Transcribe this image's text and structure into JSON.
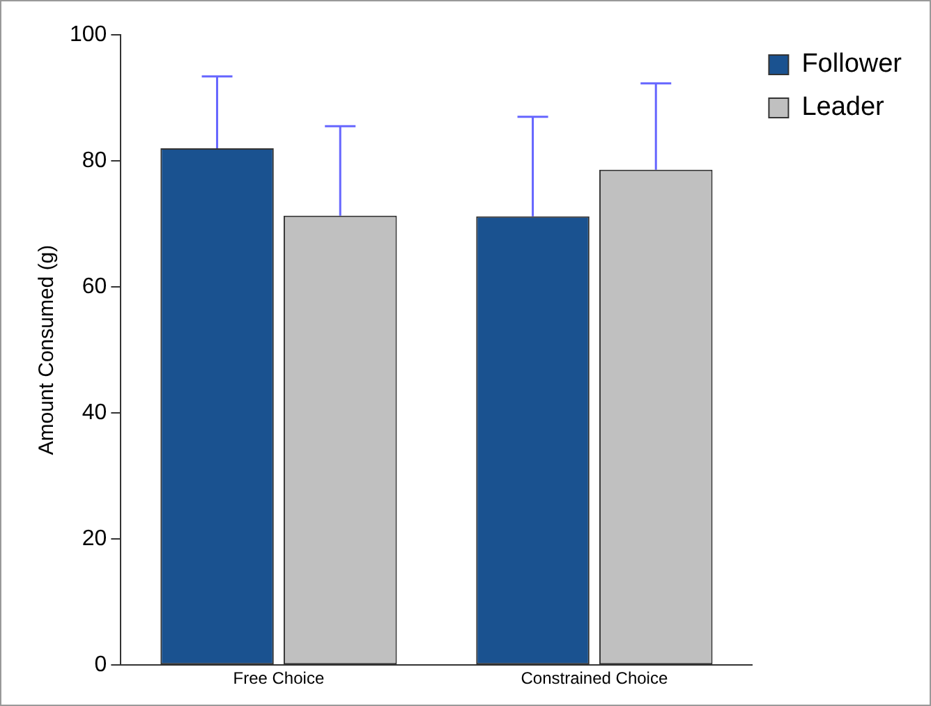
{
  "chart_data": {
    "type": "bar",
    "ylabel": "Amount Consumed (g)",
    "categories": [
      "Free Choice",
      "Constrained Choice"
    ],
    "series": [
      {
        "name": "Follower",
        "color": "#1a5290",
        "values": [
          82.0,
          71.2
        ],
        "errors": [
          [
            82.0,
            93.4
          ],
          [
            71.2,
            87.0
          ]
        ]
      },
      {
        "name": "Leader",
        "color": "#c0c0c0",
        "values": [
          71.3,
          78.6
        ],
        "errors": [
          [
            71.3,
            85.5
          ],
          [
            78.6,
            92.3
          ]
        ]
      }
    ],
    "ylim": [
      0,
      100
    ],
    "yticks": [
      0,
      20,
      40,
      60,
      80,
      100
    ],
    "grid": false,
    "legend": "top right"
  }
}
